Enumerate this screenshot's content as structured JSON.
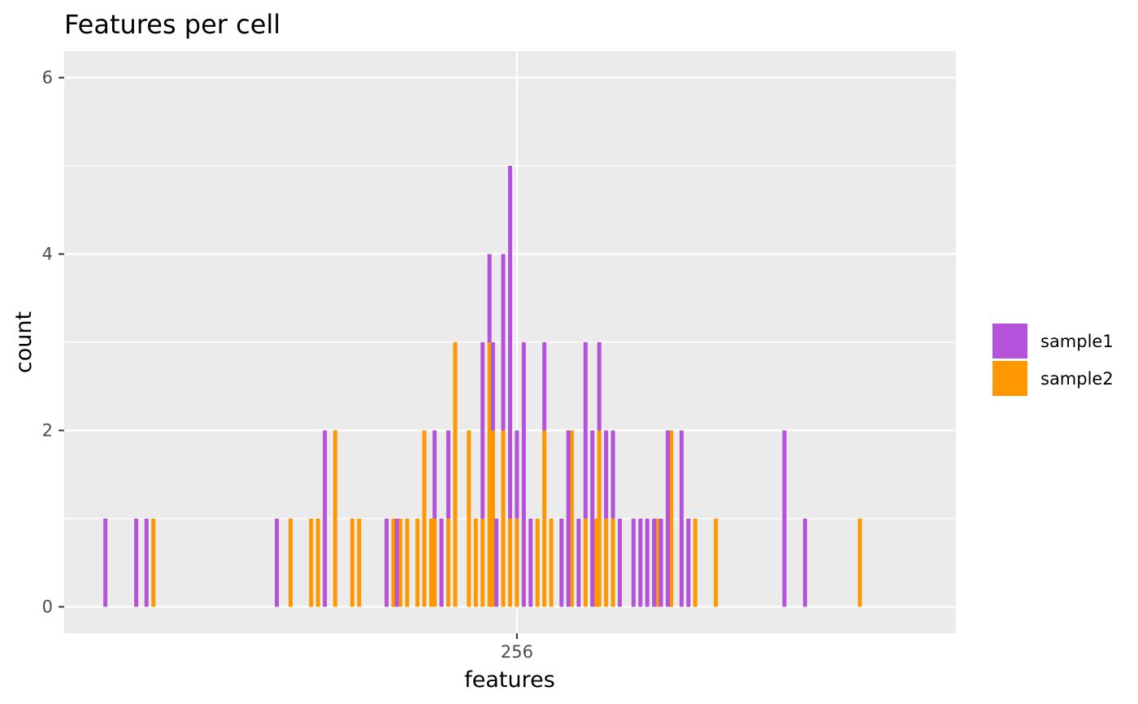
{
  "chart_data": {
    "type": "bar",
    "stacked": true,
    "title": "Features per cell",
    "xlabel": "features",
    "ylabel": "count",
    "xlim": [
      190,
      320
    ],
    "ylim": [
      -0.3,
      6.3
    ],
    "x_ticks": [
      256
    ],
    "x_tick_labels": [
      "256"
    ],
    "y_ticks": [
      0,
      2,
      4,
      6
    ],
    "y_tick_labels": [
      "0",
      "2",
      "4",
      "6"
    ],
    "grid": true,
    "legend_position": "right",
    "series": [
      {
        "name": "sample1",
        "color": "#B452DC",
        "x": [
          196,
          200.5,
          202,
          221,
          228,
          237,
          238.5,
          244,
          245,
          246,
          251,
          252,
          252.5,
          253,
          254,
          255,
          256,
          257,
          258,
          260,
          262.5,
          263.5,
          265,
          266,
          267,
          268,
          269,
          270,
          271,
          273,
          274,
          275,
          276,
          277,
          278,
          280,
          281,
          295,
          298
        ],
        "values": [
          1,
          1,
          1,
          1,
          2,
          1,
          1,
          1,
          1,
          1,
          2,
          1,
          1,
          1,
          2,
          4,
          1,
          3,
          1,
          1,
          1,
          2,
          1,
          2,
          2,
          1,
          1,
          1,
          1,
          1,
          1,
          1,
          1,
          1,
          2,
          2,
          1,
          2,
          1
        ]
      },
      {
        "name": "sample2",
        "color": "#FF9800",
        "x": [
          203,
          223,
          226,
          227,
          229.5,
          232,
          233,
          238,
          239,
          240,
          241.5,
          242.5,
          243.5,
          244,
          246,
          247,
          249,
          250,
          251,
          252,
          252.5,
          254,
          255,
          256,
          259,
          260,
          261,
          264,
          266,
          267.5,
          268,
          269,
          270,
          276.5,
          278.5,
          282,
          285,
          306
        ],
        "values": [
          1,
          1,
          1,
          1,
          2,
          1,
          1,
          1,
          1,
          1,
          1,
          2,
          1,
          1,
          1,
          3,
          2,
          1,
          1,
          3,
          2,
          2,
          1,
          1,
          1,
          2,
          1,
          2,
          1,
          1,
          2,
          1,
          1,
          1,
          2,
          1,
          1,
          1
        ]
      }
    ]
  }
}
